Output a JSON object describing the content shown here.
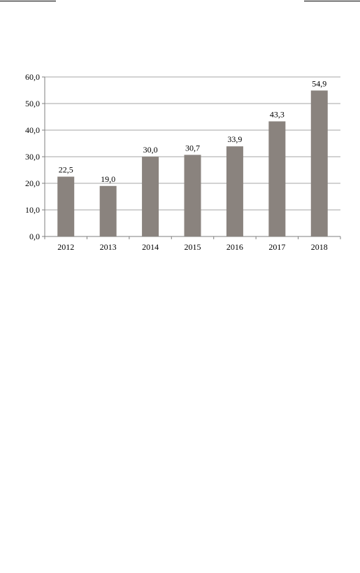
{
  "chart_data": {
    "type": "bar",
    "categories": [
      "2012",
      "2013",
      "2014",
      "2015",
      "2016",
      "2017",
      "2018"
    ],
    "values": [
      22.5,
      19.0,
      30.0,
      30.7,
      33.9,
      43.3,
      54.9
    ],
    "data_labels": [
      "22,5",
      "19,0",
      "30,0",
      "30,7",
      "33,9",
      "43,3",
      "54,9"
    ],
    "title": "",
    "xlabel": "",
    "ylabel": "",
    "ylim": [
      0,
      60
    ],
    "yticks": [
      0,
      10,
      20,
      30,
      40,
      50,
      60
    ],
    "ytick_labels": [
      "0,0",
      "10,0",
      "20,0",
      "30,0",
      "40,0",
      "50,0",
      "60,0"
    ],
    "grid": true,
    "legend": "none",
    "bar_color": "#8a837e",
    "grid_color": "#a6a6a6",
    "axis_color": "#7f7f7f"
  }
}
